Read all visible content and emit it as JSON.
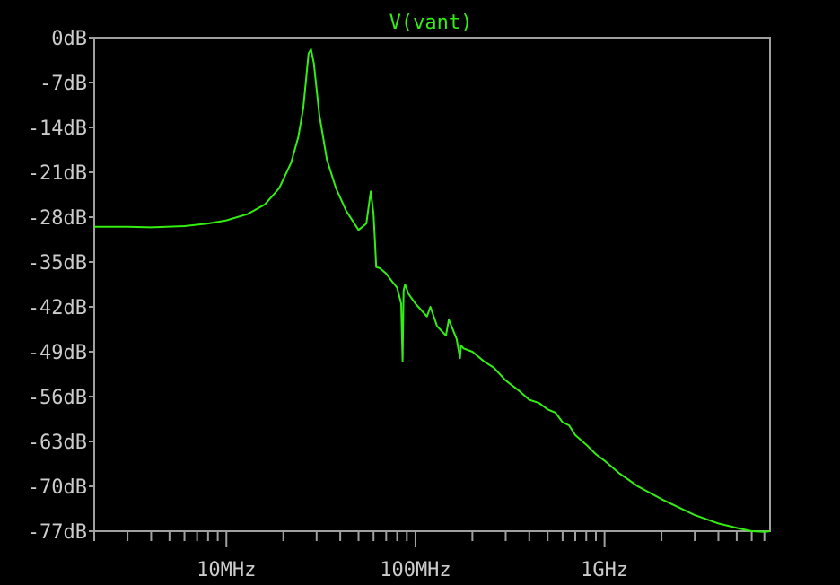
{
  "chart_data": {
    "type": "line",
    "title": "V(vant)",
    "xscale": "log",
    "xlim": [
      2000000,
      7500000000
    ],
    "ylim": [
      -77,
      0
    ],
    "x_ticks": [
      {
        "value": 10000000,
        "label": "10MHz"
      },
      {
        "value": 100000000,
        "label": "100MHz"
      },
      {
        "value": 1000000000,
        "label": "1GHz"
      }
    ],
    "y_ticks": [
      {
        "value": 0,
        "label": "0dB"
      },
      {
        "value": -7,
        "label": "-7dB"
      },
      {
        "value": -14,
        "label": "-14dB"
      },
      {
        "value": -21,
        "label": "-21dB"
      },
      {
        "value": -28,
        "label": "-28dB"
      },
      {
        "value": -35,
        "label": "-35dB"
      },
      {
        "value": -42,
        "label": "-42dB"
      },
      {
        "value": -49,
        "label": "-49dB"
      },
      {
        "value": -56,
        "label": "-56dB"
      },
      {
        "value": -63,
        "label": "-63dB"
      },
      {
        "value": -70,
        "label": "-70dB"
      },
      {
        "value": -77,
        "label": "-77dB"
      }
    ],
    "grid": false,
    "series": [
      {
        "name": "V(vant)",
        "x": [
          2000000,
          3000000,
          4000000,
          6000000,
          8000000,
          10000000,
          13000000,
          16000000,
          19000000,
          22000000,
          24000000,
          25500000,
          26500000,
          27200000,
          28000000,
          29000000,
          31000000,
          34000000,
          38000000,
          43000000,
          50000000,
          55000000,
          58000000,
          60000000,
          61000000,
          62000000,
          65000000,
          70000000,
          75000000,
          80000000,
          84000000,
          85500000,
          86500000,
          88000000,
          92000000,
          100000000,
          115000000,
          120000000,
          130000000,
          145000000,
          150000000,
          165000000,
          172000000,
          174000000,
          180000000,
          200000000,
          230000000,
          260000000,
          300000000,
          350000000,
          400000000,
          450000000,
          500000000,
          550000000,
          600000000,
          650000000,
          700000000,
          800000000,
          900000000,
          1000000000,
          1200000000,
          1500000000,
          2000000000,
          3000000000,
          4000000000,
          5000000000,
          6000000000,
          7000000000,
          7500000000
        ],
        "y": [
          -29.5,
          -29.5,
          -29.6,
          -29.4,
          -29.0,
          -28.5,
          -27.5,
          -26.0,
          -23.5,
          -19.5,
          -15.5,
          -11.0,
          -6.0,
          -2.5,
          -1.8,
          -4.0,
          -12.0,
          -19.0,
          -23.5,
          -27.0,
          -30.0,
          -29.0,
          -24.0,
          -27.5,
          -31.5,
          -35.8,
          -36.0,
          -36.8,
          -38.0,
          -39.0,
          -41.5,
          -50.5,
          -39.5,
          -38.5,
          -40.0,
          -41.5,
          -43.5,
          -42.0,
          -45.0,
          -46.5,
          -44.0,
          -47.0,
          -50.0,
          -48.0,
          -48.5,
          -49.0,
          -50.5,
          -51.5,
          -53.5,
          -55.0,
          -56.5,
          -57.0,
          -58.0,
          -58.5,
          -60.0,
          -60.5,
          -62.0,
          -63.5,
          -65.0,
          -66.0,
          -68.0,
          -70.0,
          -72.0,
          -74.5,
          -75.8,
          -76.5,
          -77.0,
          -77.1,
          -77.0
        ],
        "color": "#33ee11"
      }
    ]
  },
  "colors": {
    "background": "#000000",
    "frame": "#a0a0a0",
    "labels": "#cccccc",
    "trace": "#33ee11"
  }
}
